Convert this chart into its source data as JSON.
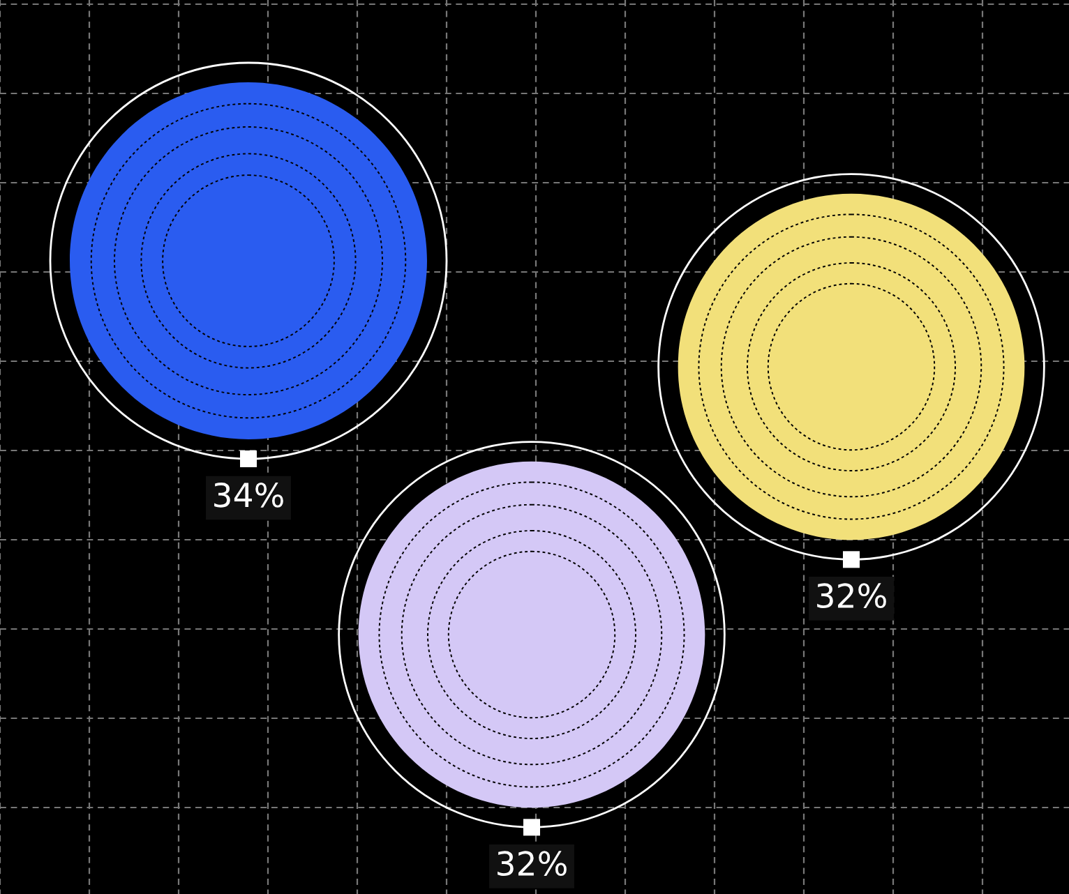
{
  "chart_data": {
    "type": "other",
    "categories": [
      null,
      null,
      null
    ],
    "values": [
      34,
      32,
      32
    ],
    "colors": [
      "#2a5cf0",
      "#f2e07a",
      "#d4c8f6"
    ],
    "value_labels": [
      "34%",
      "32%",
      "32%"
    ]
  }
}
